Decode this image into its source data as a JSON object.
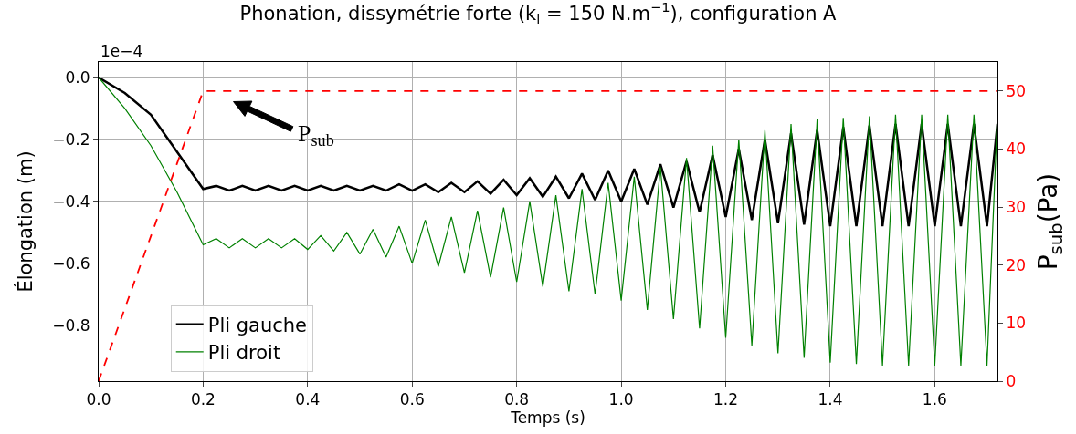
{
  "chart_data": {
    "type": "line",
    "title": "Phonation, dissymétrie forte (k$_{l}$ = 150 N.m$^{−1}$), configuration A",
    "xlabel": "Temps (s)",
    "ylabel": "Élongation (m)",
    "y2label": "P$_{sub}$(Pa)",
    "annotations": [
      "1e−4",
      "P$_{sub}$"
    ],
    "x": [
      0,
      0.05,
      0.1,
      0.15,
      0.2,
      0.225,
      0.25,
      0.275,
      0.3,
      0.325,
      0.35,
      0.375,
      0.4,
      0.425,
      0.45,
      0.475,
      0.5,
      0.525,
      0.55,
      0.575,
      0.6,
      0.625,
      0.65,
      0.675,
      0.7,
      0.725,
      0.75,
      0.775,
      0.8,
      0.825,
      0.85,
      0.875,
      0.9,
      0.925,
      0.95,
      0.975,
      1.0,
      1.025,
      1.05,
      1.075,
      1.1,
      1.125,
      1.15,
      1.175,
      1.2,
      1.225,
      1.25,
      1.275,
      1.3,
      1.325,
      1.35,
      1.375,
      1.4,
      1.425,
      1.45,
      1.475,
      1.5,
      1.525,
      1.55,
      1.575,
      1.6,
      1.625,
      1.65,
      1.675,
      1.7,
      1.72
    ],
    "series": [
      {
        "name": "Pli gauche",
        "color": "#000000",
        "line_style": "solid",
        "values": [
          0,
          -0.05,
          -0.12,
          -0.24,
          -0.36,
          -0.35,
          -0.365,
          -0.35,
          -0.365,
          -0.35,
          -0.365,
          -0.35,
          -0.365,
          -0.35,
          -0.365,
          -0.35,
          -0.365,
          -0.35,
          -0.365,
          -0.345,
          -0.365,
          -0.345,
          -0.37,
          -0.34,
          -0.37,
          -0.335,
          -0.375,
          -0.33,
          -0.38,
          -0.325,
          -0.385,
          -0.32,
          -0.39,
          -0.31,
          -0.395,
          -0.3,
          -0.4,
          -0.295,
          -0.41,
          -0.28,
          -0.42,
          -0.27,
          -0.435,
          -0.25,
          -0.45,
          -0.23,
          -0.46,
          -0.2,
          -0.47,
          -0.18,
          -0.475,
          -0.17,
          -0.48,
          -0.16,
          -0.48,
          -0.155,
          -0.48,
          -0.15,
          -0.48,
          -0.15,
          -0.48,
          -0.15,
          -0.48,
          -0.15,
          -0.48,
          -0.15
        ]
      },
      {
        "name": "Pli droit",
        "color": "#008000",
        "line_style": "solid",
        "values": [
          0,
          -0.1,
          -0.22,
          -0.37,
          -0.54,
          -0.52,
          -0.55,
          -0.52,
          -0.55,
          -0.52,
          -0.55,
          -0.52,
          -0.555,
          -0.51,
          -0.56,
          -0.5,
          -0.57,
          -0.49,
          -0.58,
          -0.48,
          -0.6,
          -0.46,
          -0.61,
          -0.45,
          -0.63,
          -0.43,
          -0.645,
          -0.42,
          -0.66,
          -0.4,
          -0.675,
          -0.38,
          -0.69,
          -0.36,
          -0.7,
          -0.34,
          -0.72,
          -0.32,
          -0.75,
          -0.29,
          -0.78,
          -0.26,
          -0.81,
          -0.22,
          -0.84,
          -0.2,
          -0.865,
          -0.17,
          -0.89,
          -0.15,
          -0.905,
          -0.135,
          -0.92,
          -0.13,
          -0.925,
          -0.125,
          -0.93,
          -0.12,
          -0.93,
          -0.12,
          -0.93,
          -0.12,
          -0.93,
          -0.12,
          -0.93,
          -0.12
        ]
      },
      {
        "color": "#ff0000",
        "line_style": "dashed",
        "axis": "y2",
        "x": [
          0,
          0.2,
          1.72
        ],
        "values": [
          0,
          50,
          50
        ]
      }
    ],
    "xlim": [
      0,
      1.72
    ],
    "xticks": [
      {
        "value": 0,
        "label": "0.0"
      },
      {
        "value": 0.2,
        "label": "0.2"
      },
      {
        "value": 0.4,
        "label": "0.4"
      },
      {
        "value": 0.6,
        "label": "0.6"
      },
      {
        "value": 0.8,
        "label": "0.8"
      },
      {
        "value": 1.0,
        "label": "1.0"
      },
      {
        "value": 1.2,
        "label": "1.2"
      },
      {
        "value": 1.4,
        "label": "1.4"
      },
      {
        "value": 1.6,
        "label": "1.6"
      }
    ],
    "ylim": [
      -0.98,
      0.05
    ],
    "yticks": [
      {
        "value": -0.8,
        "label": "−0.8"
      },
      {
        "value": -0.6,
        "label": "−0.6"
      },
      {
        "value": -0.4,
        "label": "−0.4"
      },
      {
        "value": -0.2,
        "label": "−0.2"
      },
      {
        "value": 0,
        "label": "0.0"
      }
    ],
    "y2lim": [
      0,
      55
    ],
    "y2ticks": [
      0,
      10,
      20,
      30,
      40,
      50
    ],
    "grid": true,
    "legend": "bottom left",
    "marker": "none"
  }
}
